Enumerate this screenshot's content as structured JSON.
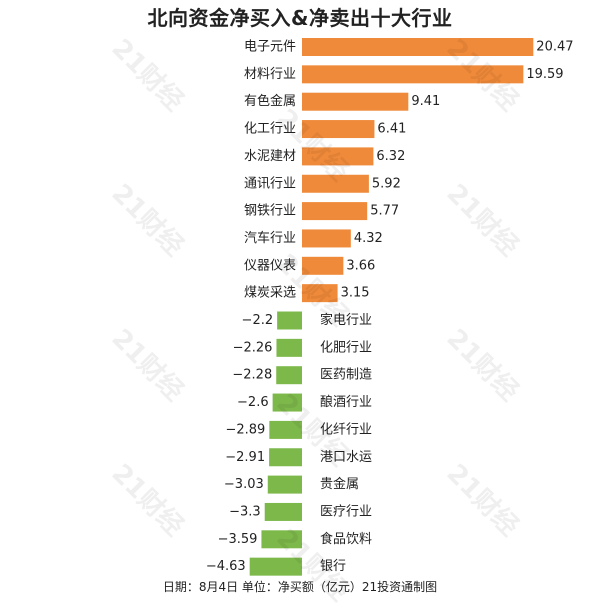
{
  "watermark_text": "21财经",
  "chart_data": {
    "type": "bar",
    "orientation": "horizontal",
    "title": "北向资金净买入&净卖出十大行业",
    "footer": "日期：8月4日 单位：净买额（亿元）21投资通制图",
    "unit": "亿元",
    "colors": {
      "positive": "#ef8a3a",
      "negative": "#7db84b"
    },
    "categories": [
      "电子元件",
      "材料行业",
      "有色金属",
      "化工行业",
      "水泥建材",
      "通讯行业",
      "钢铁行业",
      "汽车行业",
      "仪器仪表",
      "煤炭采选",
      "家电行业",
      "化肥行业",
      "医药制造",
      "酿酒行业",
      "化纤行业",
      "港口水运",
      "贵金属",
      "医疗行业",
      "食品饮料",
      "银行"
    ],
    "values": [
      20.47,
      19.59,
      9.41,
      6.41,
      6.32,
      5.92,
      5.77,
      4.32,
      3.66,
      3.15,
      -2.2,
      -2.26,
      -2.28,
      -2.6,
      -2.89,
      -2.91,
      -3.03,
      -3.3,
      -3.59,
      -4.63
    ],
    "value_labels": [
      "20.47",
      "19.59",
      "9.41",
      "6.41",
      "6.32",
      "5.92",
      "5.77",
      "4.32",
      "3.66",
      "3.15",
      "−2.2",
      "−2.26",
      "−2.28",
      "−2.6",
      "−2.89",
      "−2.91",
      "−3.03",
      "−3.3",
      "−3.59",
      "−4.63"
    ]
  }
}
